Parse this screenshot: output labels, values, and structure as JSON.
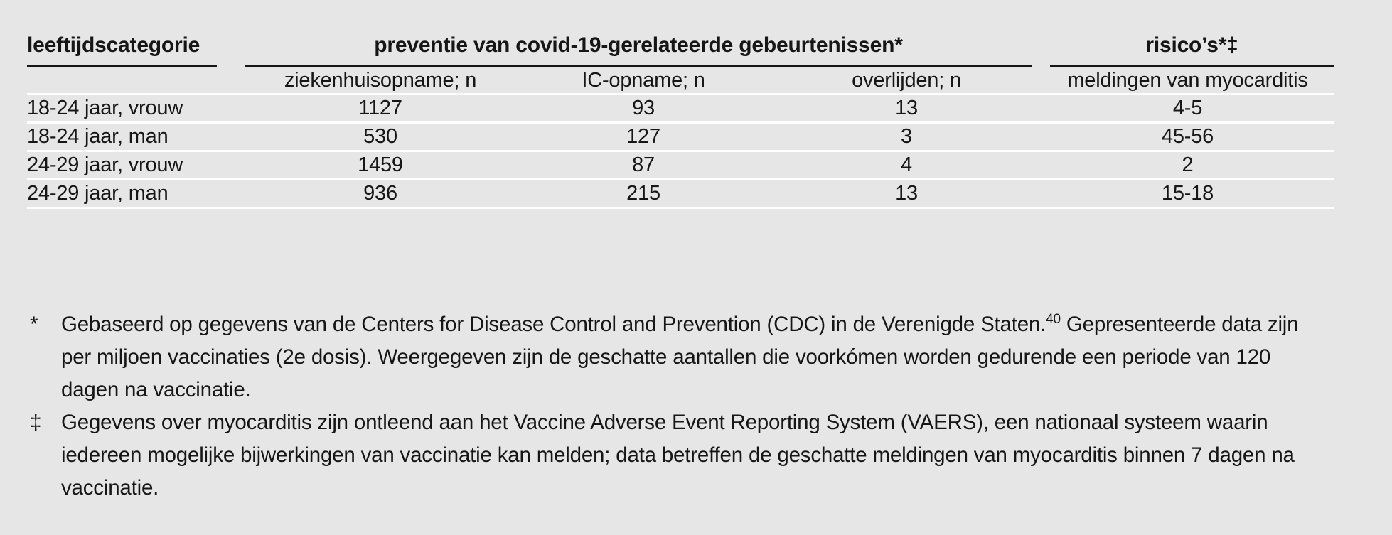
{
  "colors": {
    "page_background": "#e6e6e6",
    "text": "#161616",
    "header_rule": "#161616",
    "row_separator": "#ffffff"
  },
  "table": {
    "headers": {
      "category": "leeftijdscategorie",
      "prevention_group": "preventie van covid-19-gerelateerde gebeurtenissen*",
      "risks_group": "risico’s*‡",
      "sub": [
        "ziekenhuisopname; n",
        "IC-opname; n",
        "overlijden; n",
        "meldingen van myocarditis"
      ]
    },
    "rows": [
      {
        "category": "18-24 jaar, vrouw",
        "ziekenhuisopname": "1127",
        "ic_opname": "93",
        "overlijden": "13",
        "meldingen": "4-5"
      },
      {
        "category": "18-24 jaar, man",
        "ziekenhuisopname": "530",
        "ic_opname": "127",
        "overlijden": "3",
        "meldingen": "45-56"
      },
      {
        "category": "24-29 jaar, vrouw",
        "ziekenhuisopname": "1459",
        "ic_opname": "87",
        "overlijden": "4",
        "meldingen": "2"
      },
      {
        "category": "24-29 jaar, man",
        "ziekenhuisopname": "936",
        "ic_opname": "215",
        "overlijden": "13",
        "meldingen": "15-18"
      }
    ]
  },
  "footnotes": {
    "asterisk": {
      "marker": "*",
      "text_before_ref": "Gebaseerd op gegevens van de Centers for Disease Control and Prevention (CDC) in de Verenigde Staten.",
      "ref": "40",
      "text_after_ref": " Gepresenteerde data zijn per miljoen vaccinaties (2e dosis). Weergegeven zijn de geschatte aantallen die voorkómen worden gedurende een periode van 120 dagen na vaccinatie."
    },
    "double_dagger": {
      "marker": "‡",
      "text": "Gegevens over myocarditis zijn ontleend aan het Vaccine Adverse Event Reporting System (VAERS), een nationaal systeem waarin iedereen mogelijke bijwerkingen van vaccinatie kan melden; data betreffen de geschatte meldingen van myocarditis binnen 7 dagen na vaccinatie."
    }
  }
}
